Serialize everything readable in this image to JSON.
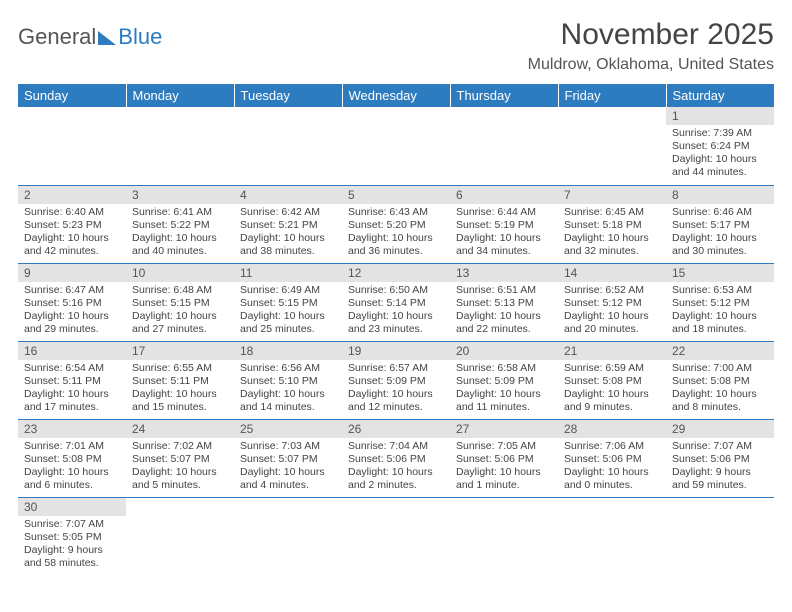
{
  "logo": {
    "part1": "General",
    "part2": "Blue"
  },
  "title": "November 2025",
  "location": "Muldrow, Oklahoma, United States",
  "colors": {
    "header_bg": "#2e7cc0",
    "header_text": "#ffffff",
    "daynum_bg": "#e3e3e3",
    "rule": "#2e7cc0",
    "body_text": "#444444"
  },
  "day_headers": [
    "Sunday",
    "Monday",
    "Tuesday",
    "Wednesday",
    "Thursday",
    "Friday",
    "Saturday"
  ],
  "weeks": [
    [
      null,
      null,
      null,
      null,
      null,
      null,
      {
        "n": "1",
        "sr": "Sunrise: 7:39 AM",
        "ss": "Sunset: 6:24 PM",
        "dl": "Daylight: 10 hours and 44 minutes."
      }
    ],
    [
      {
        "n": "2",
        "sr": "Sunrise: 6:40 AM",
        "ss": "Sunset: 5:23 PM",
        "dl": "Daylight: 10 hours and 42 minutes."
      },
      {
        "n": "3",
        "sr": "Sunrise: 6:41 AM",
        "ss": "Sunset: 5:22 PM",
        "dl": "Daylight: 10 hours and 40 minutes."
      },
      {
        "n": "4",
        "sr": "Sunrise: 6:42 AM",
        "ss": "Sunset: 5:21 PM",
        "dl": "Daylight: 10 hours and 38 minutes."
      },
      {
        "n": "5",
        "sr": "Sunrise: 6:43 AM",
        "ss": "Sunset: 5:20 PM",
        "dl": "Daylight: 10 hours and 36 minutes."
      },
      {
        "n": "6",
        "sr": "Sunrise: 6:44 AM",
        "ss": "Sunset: 5:19 PM",
        "dl": "Daylight: 10 hours and 34 minutes."
      },
      {
        "n": "7",
        "sr": "Sunrise: 6:45 AM",
        "ss": "Sunset: 5:18 PM",
        "dl": "Daylight: 10 hours and 32 minutes."
      },
      {
        "n": "8",
        "sr": "Sunrise: 6:46 AM",
        "ss": "Sunset: 5:17 PM",
        "dl": "Daylight: 10 hours and 30 minutes."
      }
    ],
    [
      {
        "n": "9",
        "sr": "Sunrise: 6:47 AM",
        "ss": "Sunset: 5:16 PM",
        "dl": "Daylight: 10 hours and 29 minutes."
      },
      {
        "n": "10",
        "sr": "Sunrise: 6:48 AM",
        "ss": "Sunset: 5:15 PM",
        "dl": "Daylight: 10 hours and 27 minutes."
      },
      {
        "n": "11",
        "sr": "Sunrise: 6:49 AM",
        "ss": "Sunset: 5:15 PM",
        "dl": "Daylight: 10 hours and 25 minutes."
      },
      {
        "n": "12",
        "sr": "Sunrise: 6:50 AM",
        "ss": "Sunset: 5:14 PM",
        "dl": "Daylight: 10 hours and 23 minutes."
      },
      {
        "n": "13",
        "sr": "Sunrise: 6:51 AM",
        "ss": "Sunset: 5:13 PM",
        "dl": "Daylight: 10 hours and 22 minutes."
      },
      {
        "n": "14",
        "sr": "Sunrise: 6:52 AM",
        "ss": "Sunset: 5:12 PM",
        "dl": "Daylight: 10 hours and 20 minutes."
      },
      {
        "n": "15",
        "sr": "Sunrise: 6:53 AM",
        "ss": "Sunset: 5:12 PM",
        "dl": "Daylight: 10 hours and 18 minutes."
      }
    ],
    [
      {
        "n": "16",
        "sr": "Sunrise: 6:54 AM",
        "ss": "Sunset: 5:11 PM",
        "dl": "Daylight: 10 hours and 17 minutes."
      },
      {
        "n": "17",
        "sr": "Sunrise: 6:55 AM",
        "ss": "Sunset: 5:11 PM",
        "dl": "Daylight: 10 hours and 15 minutes."
      },
      {
        "n": "18",
        "sr": "Sunrise: 6:56 AM",
        "ss": "Sunset: 5:10 PM",
        "dl": "Daylight: 10 hours and 14 minutes."
      },
      {
        "n": "19",
        "sr": "Sunrise: 6:57 AM",
        "ss": "Sunset: 5:09 PM",
        "dl": "Daylight: 10 hours and 12 minutes."
      },
      {
        "n": "20",
        "sr": "Sunrise: 6:58 AM",
        "ss": "Sunset: 5:09 PM",
        "dl": "Daylight: 10 hours and 11 minutes."
      },
      {
        "n": "21",
        "sr": "Sunrise: 6:59 AM",
        "ss": "Sunset: 5:08 PM",
        "dl": "Daylight: 10 hours and 9 minutes."
      },
      {
        "n": "22",
        "sr": "Sunrise: 7:00 AM",
        "ss": "Sunset: 5:08 PM",
        "dl": "Daylight: 10 hours and 8 minutes."
      }
    ],
    [
      {
        "n": "23",
        "sr": "Sunrise: 7:01 AM",
        "ss": "Sunset: 5:08 PM",
        "dl": "Daylight: 10 hours and 6 minutes."
      },
      {
        "n": "24",
        "sr": "Sunrise: 7:02 AM",
        "ss": "Sunset: 5:07 PM",
        "dl": "Daylight: 10 hours and 5 minutes."
      },
      {
        "n": "25",
        "sr": "Sunrise: 7:03 AM",
        "ss": "Sunset: 5:07 PM",
        "dl": "Daylight: 10 hours and 4 minutes."
      },
      {
        "n": "26",
        "sr": "Sunrise: 7:04 AM",
        "ss": "Sunset: 5:06 PM",
        "dl": "Daylight: 10 hours and 2 minutes."
      },
      {
        "n": "27",
        "sr": "Sunrise: 7:05 AM",
        "ss": "Sunset: 5:06 PM",
        "dl": "Daylight: 10 hours and 1 minute."
      },
      {
        "n": "28",
        "sr": "Sunrise: 7:06 AM",
        "ss": "Sunset: 5:06 PM",
        "dl": "Daylight: 10 hours and 0 minutes."
      },
      {
        "n": "29",
        "sr": "Sunrise: 7:07 AM",
        "ss": "Sunset: 5:06 PM",
        "dl": "Daylight: 9 hours and 59 minutes."
      }
    ],
    [
      {
        "n": "30",
        "sr": "Sunrise: 7:07 AM",
        "ss": "Sunset: 5:05 PM",
        "dl": "Daylight: 9 hours and 58 minutes."
      },
      null,
      null,
      null,
      null,
      null,
      null
    ]
  ]
}
